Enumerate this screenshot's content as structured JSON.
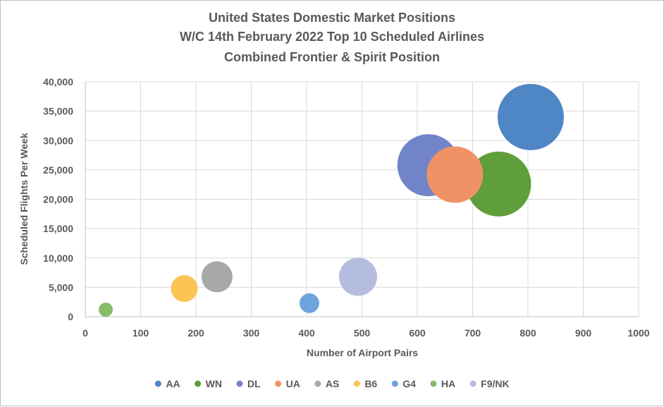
{
  "chart_data": {
    "type": "bubble",
    "title": [
      "United States Domestic Market Positions",
      "W/C 14th February 2022 Top 10 Scheduled Airlines",
      "Combined Frontier & Spirit Position"
    ],
    "xlabel": "Number of Airport Pairs",
    "ylabel": "Scheduled Flights Per Week",
    "xlim": [
      0,
      1000
    ],
    "ylim": [
      0,
      40000
    ],
    "xticks": [
      "0",
      "100",
      "200",
      "300",
      "400",
      "500",
      "600",
      "700",
      "800",
      "900",
      "1000"
    ],
    "yticks": [
      "0",
      "5,000",
      "10,000",
      "15,000",
      "20,000",
      "25,000",
      "30,000",
      "35,000",
      "40,000"
    ],
    "grid": true,
    "legend_position": "bottom",
    "series": [
      {
        "name": "AA",
        "x": 805,
        "y": 34000,
        "size": 47,
        "color": "#4f86c6"
      },
      {
        "name": "WN",
        "x": 747,
        "y": 22600,
        "size": 46,
        "color": "#5f9e3a"
      },
      {
        "name": "DL",
        "x": 620,
        "y": 25800,
        "size": 44,
        "color": "#7284c9"
      },
      {
        "name": "UA",
        "x": 668,
        "y": 24200,
        "size": 40,
        "color": "#ef9366"
      },
      {
        "name": "AS",
        "x": 238,
        "y": 6800,
        "size": 22,
        "color": "#a8a8a8"
      },
      {
        "name": "B6",
        "x": 179,
        "y": 4800,
        "size": 19,
        "color": "#fcc455"
      },
      {
        "name": "G4",
        "x": 405,
        "y": 2300,
        "size": 14,
        "color": "#6fa3dc"
      },
      {
        "name": "HA",
        "x": 37,
        "y": 1200,
        "size": 10,
        "color": "#86bb67"
      },
      {
        "name": "F9/NK",
        "x": 493,
        "y": 6800,
        "size": 27,
        "color": "#b4bde0"
      }
    ]
  }
}
